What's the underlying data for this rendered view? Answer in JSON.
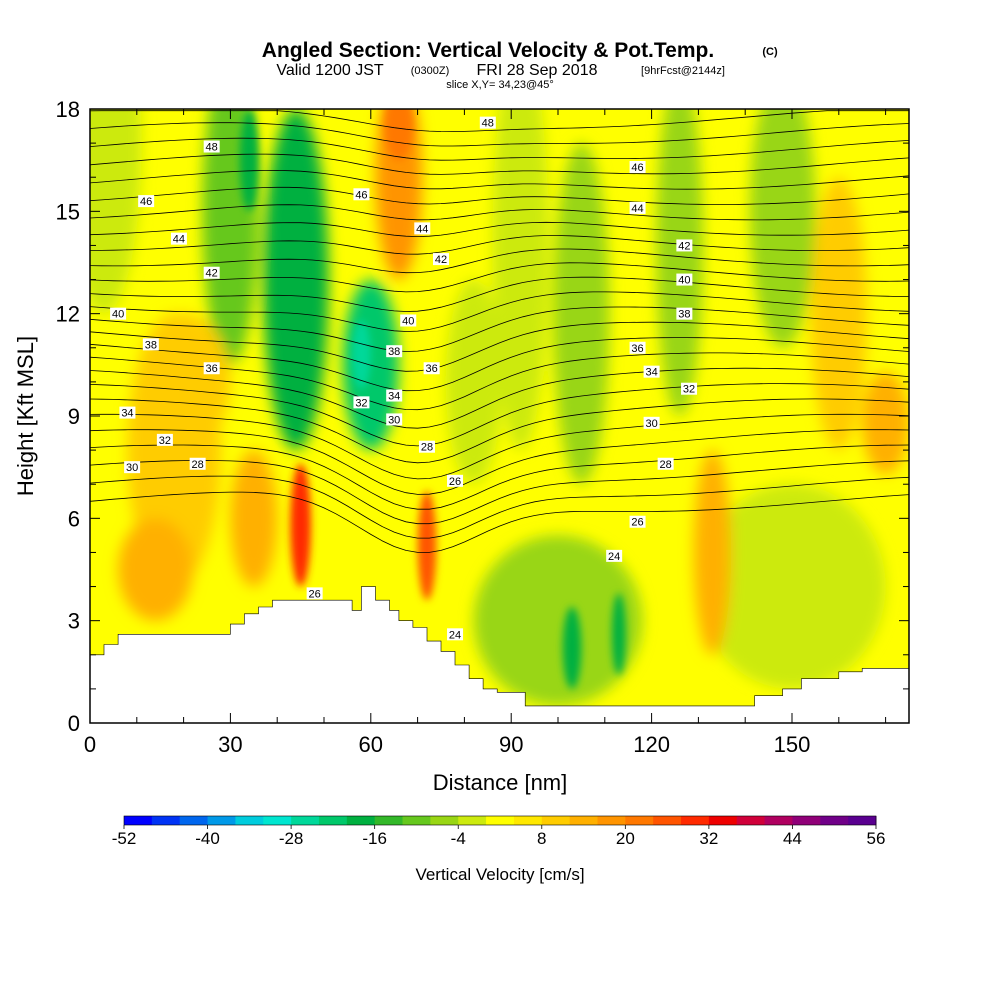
{
  "chart_data": {
    "type": "heatmap",
    "title": "Angled Section: Vertical Velocity & Pot.Temp.",
    "title_unit": "(C)",
    "subtitle_main": "Valid 1200 JST",
    "subtitle_utc": "(0300Z)",
    "subtitle_date": "FRI 28 Sep 2018",
    "subtitle_fcst": "[9hrFcst@2144z]",
    "subtitle2": "slice X,Y= 34,23@45°",
    "xlabel": "Distance [nm]",
    "ylabel": "Height [Kft MSL]",
    "xlim": [
      0,
      175
    ],
    "ylim": [
      0,
      18
    ],
    "x_ticks": [
      0,
      30,
      60,
      90,
      120,
      150
    ],
    "y_ticks": [
      0,
      3,
      6,
      9,
      12,
      15,
      18
    ],
    "colorbar": {
      "label": "Vertical Velocity [cm/s]",
      "range": [
        -52,
        56
      ],
      "tick_labels": [
        -52,
        -40,
        -28,
        -16,
        -4,
        8,
        20,
        32,
        44,
        56
      ],
      "colors": [
        "#0000ff",
        "#0033f5",
        "#0066ee",
        "#0099e8",
        "#00ccdd",
        "#00e6d0",
        "#00d89a",
        "#00c86a",
        "#00b040",
        "#33b829",
        "#66c81e",
        "#99d614",
        "#ccea0e",
        "#ffff00",
        "#ffe800",
        "#ffcc00",
        "#ffb000",
        "#ff9400",
        "#ff7800",
        "#ff5400",
        "#ff2a00",
        "#ee0000",
        "#d0003a",
        "#b00060",
        "#900078",
        "#700088",
        "#5a0090"
      ]
    },
    "pot_temp_contour_labels": [
      {
        "value": 48,
        "x": 85,
        "y": 17.6
      },
      {
        "value": 48,
        "x": 26,
        "y": 16.9
      },
      {
        "value": 46,
        "x": 12,
        "y": 15.3
      },
      {
        "value": 46,
        "x": 58,
        "y": 15.5
      },
      {
        "value": 46,
        "x": 117,
        "y": 16.3
      },
      {
        "value": 44,
        "x": 19,
        "y": 14.2
      },
      {
        "value": 44,
        "x": 71,
        "y": 14.5
      },
      {
        "value": 44,
        "x": 117,
        "y": 15.1
      },
      {
        "value": 42,
        "x": 26,
        "y": 13.2
      },
      {
        "value": 42,
        "x": 75,
        "y": 13.6
      },
      {
        "value": 42,
        "x": 127,
        "y": 14.0
      },
      {
        "value": 40,
        "x": 6,
        "y": 12.0
      },
      {
        "value": 40,
        "x": 68,
        "y": 11.8
      },
      {
        "value": 40,
        "x": 127,
        "y": 13.0
      },
      {
        "value": 38,
        "x": 13,
        "y": 11.1
      },
      {
        "value": 38,
        "x": 65,
        "y": 10.9
      },
      {
        "value": 38,
        "x": 127,
        "y": 12.0
      },
      {
        "value": 36,
        "x": 26,
        "y": 10.4
      },
      {
        "value": 36,
        "x": 73,
        "y": 10.4
      },
      {
        "value": 36,
        "x": 117,
        "y": 11.0
      },
      {
        "value": 34,
        "x": 8,
        "y": 9.1
      },
      {
        "value": 34,
        "x": 65,
        "y": 9.6
      },
      {
        "value": 34,
        "x": 120,
        "y": 10.3
      },
      {
        "value": 32,
        "x": 16,
        "y": 8.3
      },
      {
        "value": 32,
        "x": 58,
        "y": 9.4
      },
      {
        "value": 32,
        "x": 128,
        "y": 9.8
      },
      {
        "value": 30,
        "x": 9,
        "y": 7.5
      },
      {
        "value": 30,
        "x": 65,
        "y": 8.9
      },
      {
        "value": 30,
        "x": 120,
        "y": 8.8
      },
      {
        "value": 28,
        "x": 23,
        "y": 7.6
      },
      {
        "value": 28,
        "x": 72,
        "y": 8.1
      },
      {
        "value": 28,
        "x": 123,
        "y": 7.6
      },
      {
        "value": 26,
        "x": 78,
        "y": 7.1
      },
      {
        "value": 26,
        "x": 117,
        "y": 5.9
      },
      {
        "value": 26,
        "x": 48,
        "y": 3.8
      },
      {
        "value": 24,
        "x": 112,
        "y": 4.9
      },
      {
        "value": 24,
        "x": 78,
        "y": 2.6
      }
    ],
    "terrain_profile": {
      "x": [
        0,
        3,
        3,
        6,
        6,
        30,
        30,
        33,
        33,
        36,
        36,
        39,
        39,
        42,
        42,
        56,
        56,
        58,
        58,
        61,
        61,
        64,
        64,
        66,
        66,
        69,
        69,
        72,
        72,
        75,
        75,
        78,
        78,
        81,
        81,
        84,
        84,
        87,
        87,
        93,
        93,
        98,
        98,
        142,
        142,
        144,
        144,
        148,
        148,
        152,
        152,
        156,
        156,
        160,
        160,
        165,
        165,
        175
      ],
      "y": [
        2.0,
        2.0,
        2.3,
        2.3,
        2.6,
        2.6,
        2.9,
        2.9,
        3.2,
        3.2,
        3.4,
        3.4,
        3.6,
        3.6,
        3.6,
        3.6,
        3.3,
        3.3,
        4.0,
        4.0,
        3.6,
        3.6,
        3.3,
        3.3,
        3.0,
        3.0,
        2.8,
        2.8,
        2.4,
        2.4,
        2.1,
        2.1,
        1.7,
        1.7,
        1.3,
        1.3,
        1.0,
        1.0,
        0.9,
        0.9,
        0.5,
        0.5,
        0.5,
        0.5,
        0.8,
        0.8,
        0.8,
        0.8,
        1.0,
        1.0,
        1.3,
        1.3,
        1.3,
        1.3,
        1.5,
        1.5,
        1.6,
        1.6
      ]
    }
  }
}
